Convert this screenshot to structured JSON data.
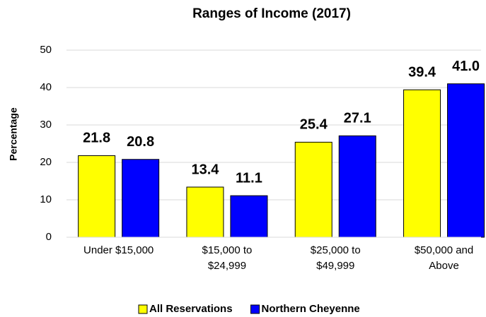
{
  "chart_data": {
    "type": "bar",
    "title": "Ranges of Income (2017)",
    "y_label": "Percentage",
    "categories": [
      "Under $15,000",
      "$15,000 to\n$24,999",
      "$25,000 to\n$49,999",
      "$50,000 and\nAbove"
    ],
    "series": [
      {
        "name": "All Reservations",
        "color": "#ffff00",
        "values": [
          21.8,
          13.4,
          25.4,
          39.4
        ],
        "value_labels": [
          "21.8",
          "13.4",
          "25.4",
          "39.4"
        ]
      },
      {
        "name": "Northern Cheyenne",
        "color": "#0000ff",
        "values": [
          20.8,
          11.1,
          27.1,
          41
        ],
        "value_labels": [
          "20.8",
          "11.1",
          "27.1",
          "41.0"
        ]
      }
    ],
    "ylim": [
      0,
      50
    ],
    "yticks": [
      0,
      10,
      20,
      30,
      40,
      50
    ],
    "grid": true,
    "legend": "bottom"
  }
}
